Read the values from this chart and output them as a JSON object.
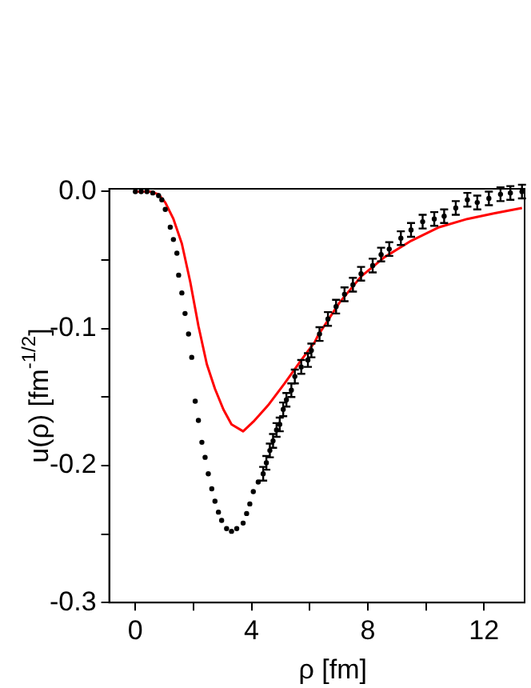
{
  "chart_data": {
    "type": "scatter",
    "xlabel": "ρ [fm]",
    "ylabel": "u(ρ) [fm$^{-1/2}$]",
    "xlim": [
      -0.9,
      13.4
    ],
    "ylim": [
      -0.3,
      0.002
    ],
    "xticks": [
      0,
      {
        "value": 2,
        "label": null
      },
      4,
      {
        "value": 6,
        "label": null
      },
      8,
      {
        "value": 10,
        "label": null
      },
      12
    ],
    "yticks": [
      {
        "value": -0.3,
        "label": "-0.3"
      },
      {
        "value": -0.25,
        "label": null
      },
      {
        "value": -0.2,
        "label": "-0.2"
      },
      {
        "value": -0.15,
        "label": null
      },
      {
        "value": -0.1,
        "label": "-0.1"
      },
      {
        "value": -0.05,
        "label": null
      },
      {
        "value": 0,
        "label": "0.0"
      }
    ],
    "grid": false,
    "legend": false,
    "marker": "circle",
    "series": [
      {
        "type": "scatter",
        "color": "#000000",
        "x": [
          0,
          0.2,
          0.4,
          0.6,
          0.8,
          0.91,
          1.03,
          1.2,
          1.31,
          1.43,
          1.49,
          1.6,
          1.71,
          1.83,
          1.94,
          2.06,
          2.17,
          2.29,
          2.4,
          2.51,
          2.63,
          2.74,
          2.86,
          2.97,
          3.14,
          3.31,
          3.49,
          3.71,
          3.83,
          3.94,
          4.06,
          4.23,
          4.4,
          4.51,
          4.63,
          4.74,
          4.86,
          4.97,
          5.09,
          5.2,
          5.37,
          5.49,
          5.71,
          5.94,
          6.06,
          6.34,
          6.63,
          6.91,
          7.2,
          7.49,
          7.77,
          8.17,
          8.46,
          8.74,
          9.14,
          9.49,
          9.89,
          10.29,
          10.63,
          11.03,
          11.43,
          11.77,
          12.17,
          12.57,
          12.91,
          13.31
        ],
        "values": [
          0,
          0,
          0,
          -0.001,
          -0.003,
          -0.006,
          -0.013,
          -0.026,
          -0.035,
          -0.045,
          -0.061,
          -0.074,
          -0.089,
          -0.104,
          -0.121,
          -0.153,
          -0.167,
          -0.183,
          -0.194,
          -0.206,
          -0.217,
          -0.226,
          -0.234,
          -0.24,
          -0.246,
          -0.248,
          -0.246,
          -0.242,
          -0.235,
          -0.228,
          -0.219,
          -0.212,
          -0.206,
          -0.198,
          -0.189,
          -0.182,
          -0.174,
          -0.17,
          -0.159,
          -0.152,
          -0.145,
          -0.135,
          -0.128,
          -0.123,
          -0.116,
          -0.104,
          -0.093,
          -0.084,
          -0.075,
          -0.068,
          -0.06,
          -0.054,
          -0.046,
          -0.042,
          -0.034,
          -0.028,
          -0.022,
          -0.02,
          -0.018,
          -0.012,
          -0.006,
          -0.008,
          -0.005,
          -0.002,
          -0.001,
          0
        ],
        "errors": [
          null,
          null,
          null,
          null,
          null,
          null,
          null,
          null,
          null,
          null,
          null,
          null,
          null,
          null,
          null,
          null,
          null,
          null,
          null,
          null,
          null,
          null,
          null,
          null,
          null,
          null,
          null,
          null,
          null,
          null,
          null,
          null,
          0.005,
          0.005,
          0.005,
          0.005,
          0.005,
          0.005,
          0.005,
          0.005,
          0.005,
          0.005,
          0.005,
          0.005,
          0.005,
          0.005,
          0.005,
          0.005,
          0.005,
          0.005,
          0.005,
          0.005,
          0.005,
          0.005,
          0.005,
          0.005,
          0.005,
          0.005,
          0.005,
          0.005,
          0.005,
          0.005,
          0.005,
          0.005,
          0.005,
          0.005
        ]
      },
      {
        "type": "line",
        "color": "#ff0000",
        "marker": "none",
        "x": [
          0,
          0.5,
          0.8,
          1.03,
          1.31,
          1.6,
          1.89,
          2.17,
          2.46,
          2.74,
          3.03,
          3.31,
          3.71,
          4.06,
          4.57,
          5.14,
          5.71,
          6.17,
          6.29,
          7.03,
          7.77,
          8.57,
          9.49,
          10.46,
          11.43,
          12.34,
          13.31
        ],
        "values": [
          0,
          0,
          -0.002,
          -0.008,
          -0.02,
          -0.038,
          -0.066,
          -0.098,
          -0.126,
          -0.144,
          -0.159,
          -0.17,
          -0.175,
          -0.168,
          -0.156,
          -0.14,
          -0.123,
          -0.11,
          -0.105,
          -0.081,
          -0.062,
          -0.048,
          -0.036,
          -0.026,
          -0.02,
          -0.016,
          -0.012
        ]
      }
    ]
  }
}
